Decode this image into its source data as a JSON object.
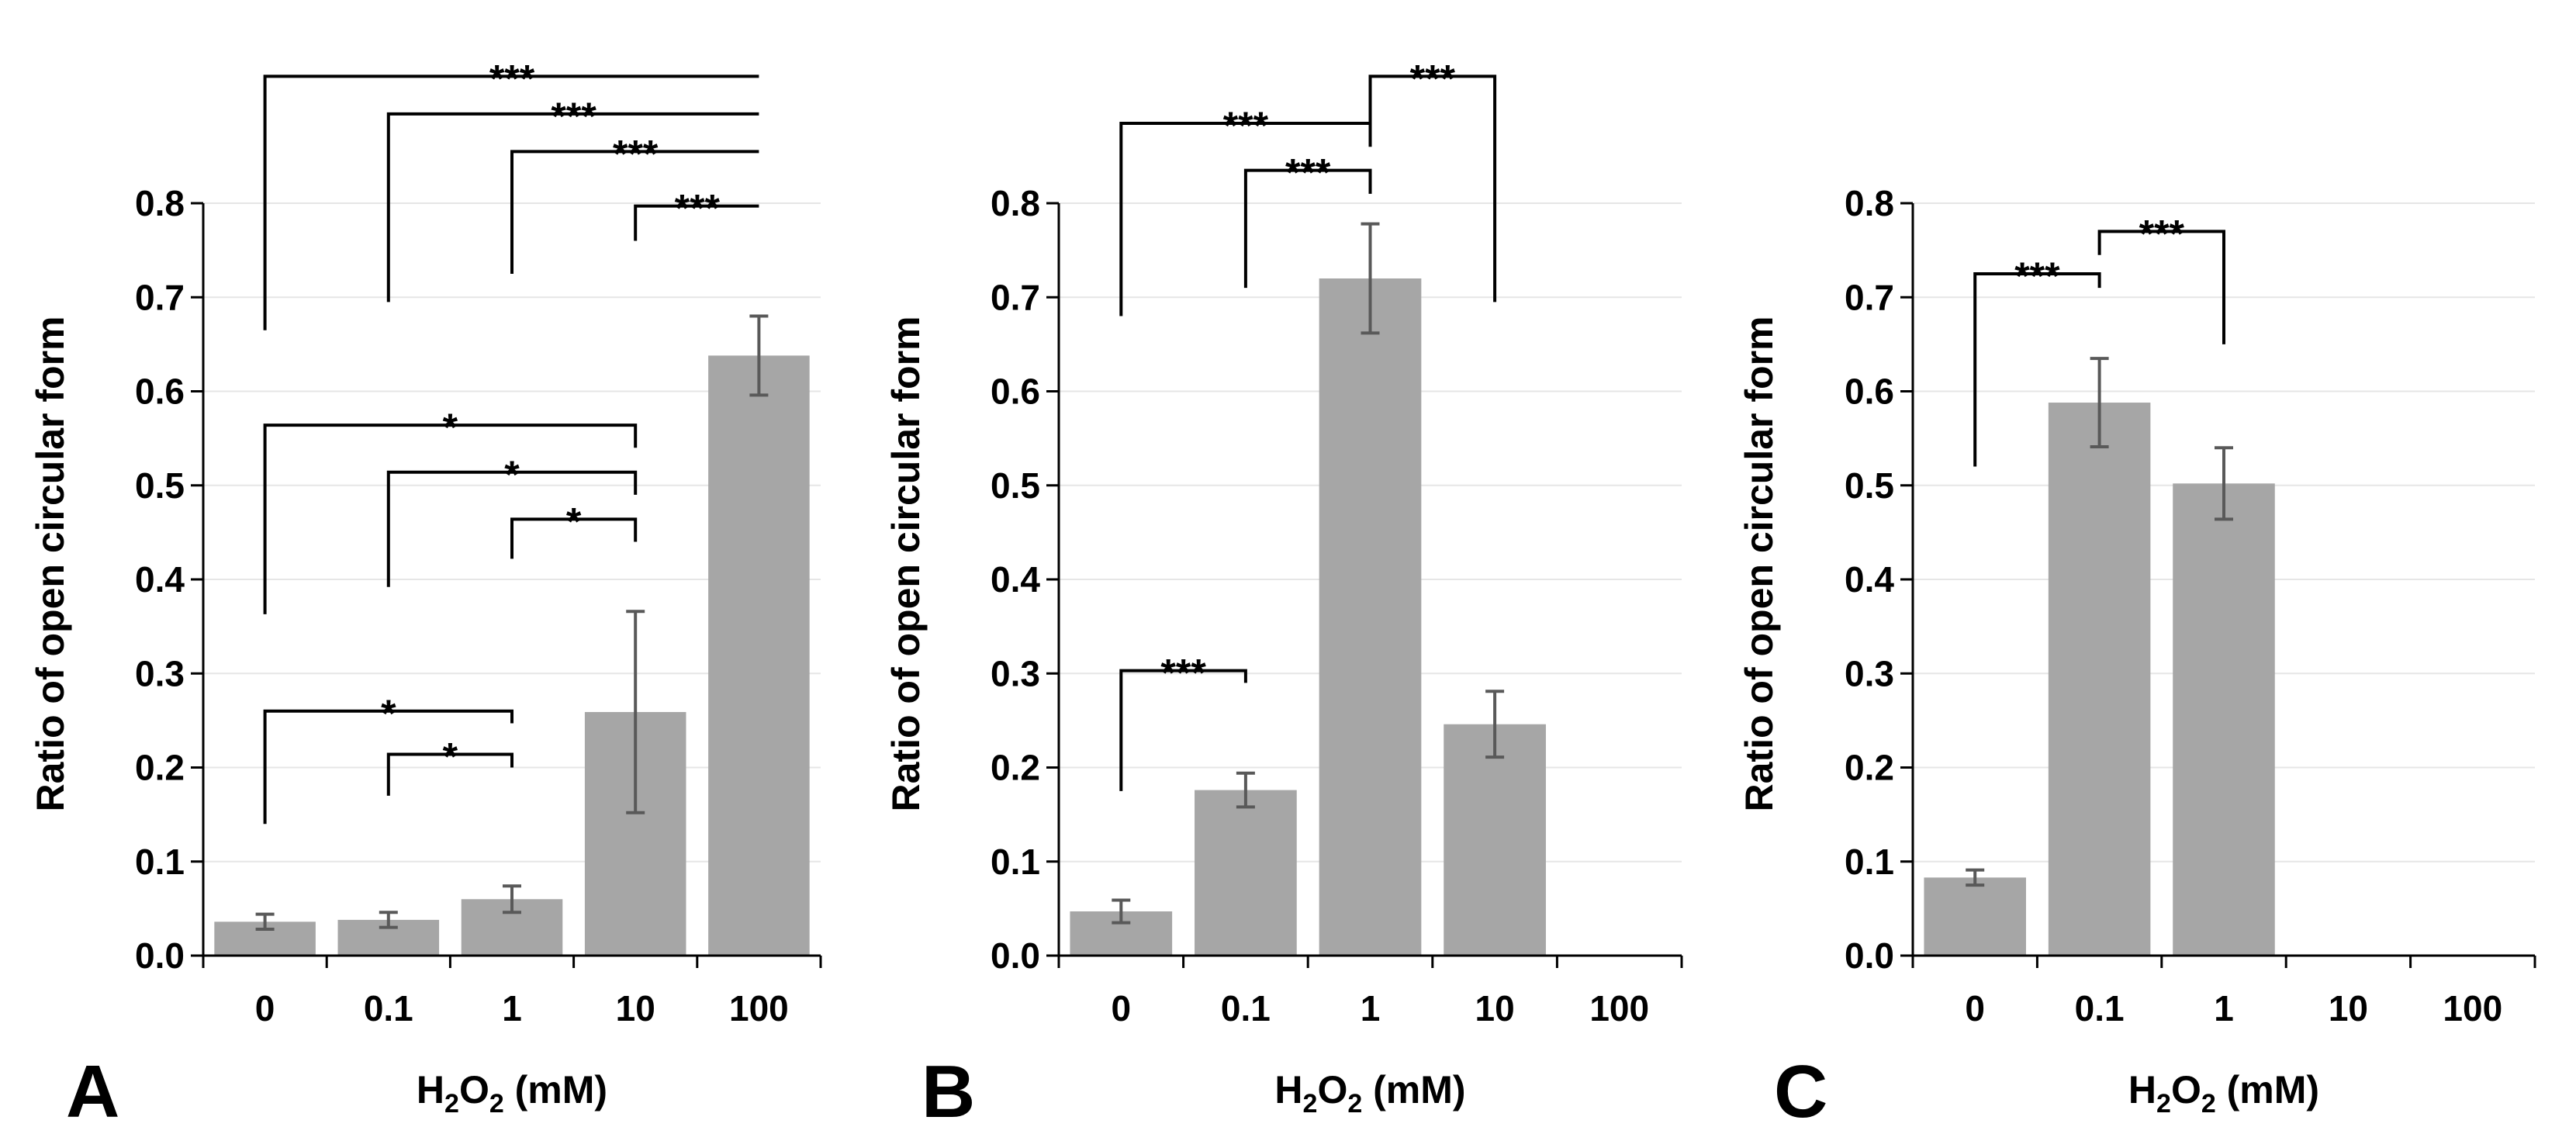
{
  "chart_data": [
    {
      "type": "bar",
      "panel_label": "A",
      "categories": [
        "0",
        "0.1",
        "1",
        "10",
        "100"
      ],
      "values": [
        0.036,
        0.038,
        0.06,
        0.259,
        0.638
      ],
      "errors": [
        0.008,
        0.008,
        0.014,
        0.107,
        0.042
      ],
      "ylabel": "Ratio of open circular form",
      "xlabel": {
        "prefix": "H",
        "sub1": "2",
        "mid": "O",
        "sub2": "2",
        "suffix": " (mM)"
      },
      "ylim": [
        0,
        0.8
      ],
      "yticks": [
        "0.0",
        "0.1",
        "0.2",
        "0.3",
        "0.4",
        "0.5",
        "0.6",
        "0.7",
        "0.8"
      ],
      "grid": true,
      "bar_color": "#a6a6a6",
      "significance": [
        {
          "from": 0,
          "to": 4,
          "label": "***",
          "y": 0.935,
          "left_bottom": 0.665,
          "right_bottom": 0.935
        },
        {
          "from": 1,
          "to": 4,
          "label": "***",
          "y": 0.895,
          "left_bottom": 0.695,
          "right_bottom": 0.895
        },
        {
          "from": 2,
          "to": 4,
          "label": "***",
          "y": 0.855,
          "left_bottom": 0.725,
          "right_bottom": 0.855
        },
        {
          "from": 3,
          "to": 4,
          "label": "***",
          "y": 0.797,
          "left_bottom": 0.76,
          "right_bottom": 0.797
        },
        {
          "from": 0,
          "to": 3,
          "label": "*",
          "y": 0.564,
          "left_bottom": 0.363,
          "right_bottom": 0.54
        },
        {
          "from": 1,
          "to": 3,
          "label": "*",
          "y": 0.514,
          "left_bottom": 0.392,
          "right_bottom": 0.49
        },
        {
          "from": 2,
          "to": 3,
          "label": "*",
          "y": 0.464,
          "left_bottom": 0.422,
          "right_bottom": 0.44
        },
        {
          "from": 0,
          "to": 2,
          "label": "*",
          "y": 0.26,
          "left_bottom": 0.14,
          "right_bottom": 0.247
        },
        {
          "from": 1,
          "to": 2,
          "label": "*",
          "y": 0.214,
          "left_bottom": 0.17,
          "right_bottom": 0.2
        }
      ]
    },
    {
      "type": "bar",
      "panel_label": "B",
      "categories": [
        "0",
        "0.1",
        "1",
        "10",
        "100"
      ],
      "values": [
        0.047,
        0.176,
        0.72,
        0.246,
        0
      ],
      "errors": [
        0.012,
        0.018,
        0.058,
        0.035,
        null
      ],
      "ylabel": "Ratio of open circular form",
      "xlabel": {
        "prefix": "H",
        "sub1": "2",
        "mid": "O",
        "sub2": "2",
        "suffix": " (mM)"
      },
      "ylim": [
        0,
        0.8
      ],
      "yticks": [
        "0.0",
        "0.1",
        "0.2",
        "0.3",
        "0.4",
        "0.5",
        "0.6",
        "0.7",
        "0.8"
      ],
      "grid": true,
      "bar_color": "#a6a6a6",
      "significance": [
        {
          "from": 2,
          "to": 3,
          "label": "***",
          "y": 0.935,
          "left_bottom": 0.88,
          "right_bottom": 0.695
        },
        {
          "from": 0,
          "to": 2,
          "label": "***",
          "y": 0.885,
          "left_bottom": 0.68,
          "right_bottom": 0.86
        },
        {
          "from": 1,
          "to": 2,
          "label": "***",
          "y": 0.835,
          "left_bottom": 0.71,
          "right_bottom": 0.81
        },
        {
          "from": 0,
          "to": 1,
          "label": "***",
          "y": 0.303,
          "left_bottom": 0.175,
          "right_bottom": 0.29
        }
      ]
    },
    {
      "type": "bar",
      "panel_label": "C",
      "categories": [
        "0",
        "0.1",
        "1",
        "10",
        "100"
      ],
      "values": [
        0.083,
        0.588,
        0.502,
        0,
        0
      ],
      "errors": [
        0.008,
        0.047,
        0.038,
        null,
        null
      ],
      "ylabel": "Ratio of open circular form",
      "xlabel": {
        "prefix": "H",
        "sub1": "2",
        "mid": "O",
        "sub2": "2",
        "suffix": " (mM)"
      },
      "ylim": [
        0,
        0.8
      ],
      "yticks": [
        "0.0",
        "0.1",
        "0.2",
        "0.3",
        "0.4",
        "0.5",
        "0.6",
        "0.7",
        "0.8"
      ],
      "grid": true,
      "bar_color": "#a6a6a6",
      "significance": [
        {
          "from": 1,
          "to": 2,
          "label": "***",
          "y": 0.77,
          "left_bottom": 0.745,
          "right_bottom": 0.65
        },
        {
          "from": 0,
          "to": 1,
          "label": "***",
          "y": 0.725,
          "left_bottom": 0.52,
          "right_bottom": 0.71
        }
      ]
    }
  ]
}
